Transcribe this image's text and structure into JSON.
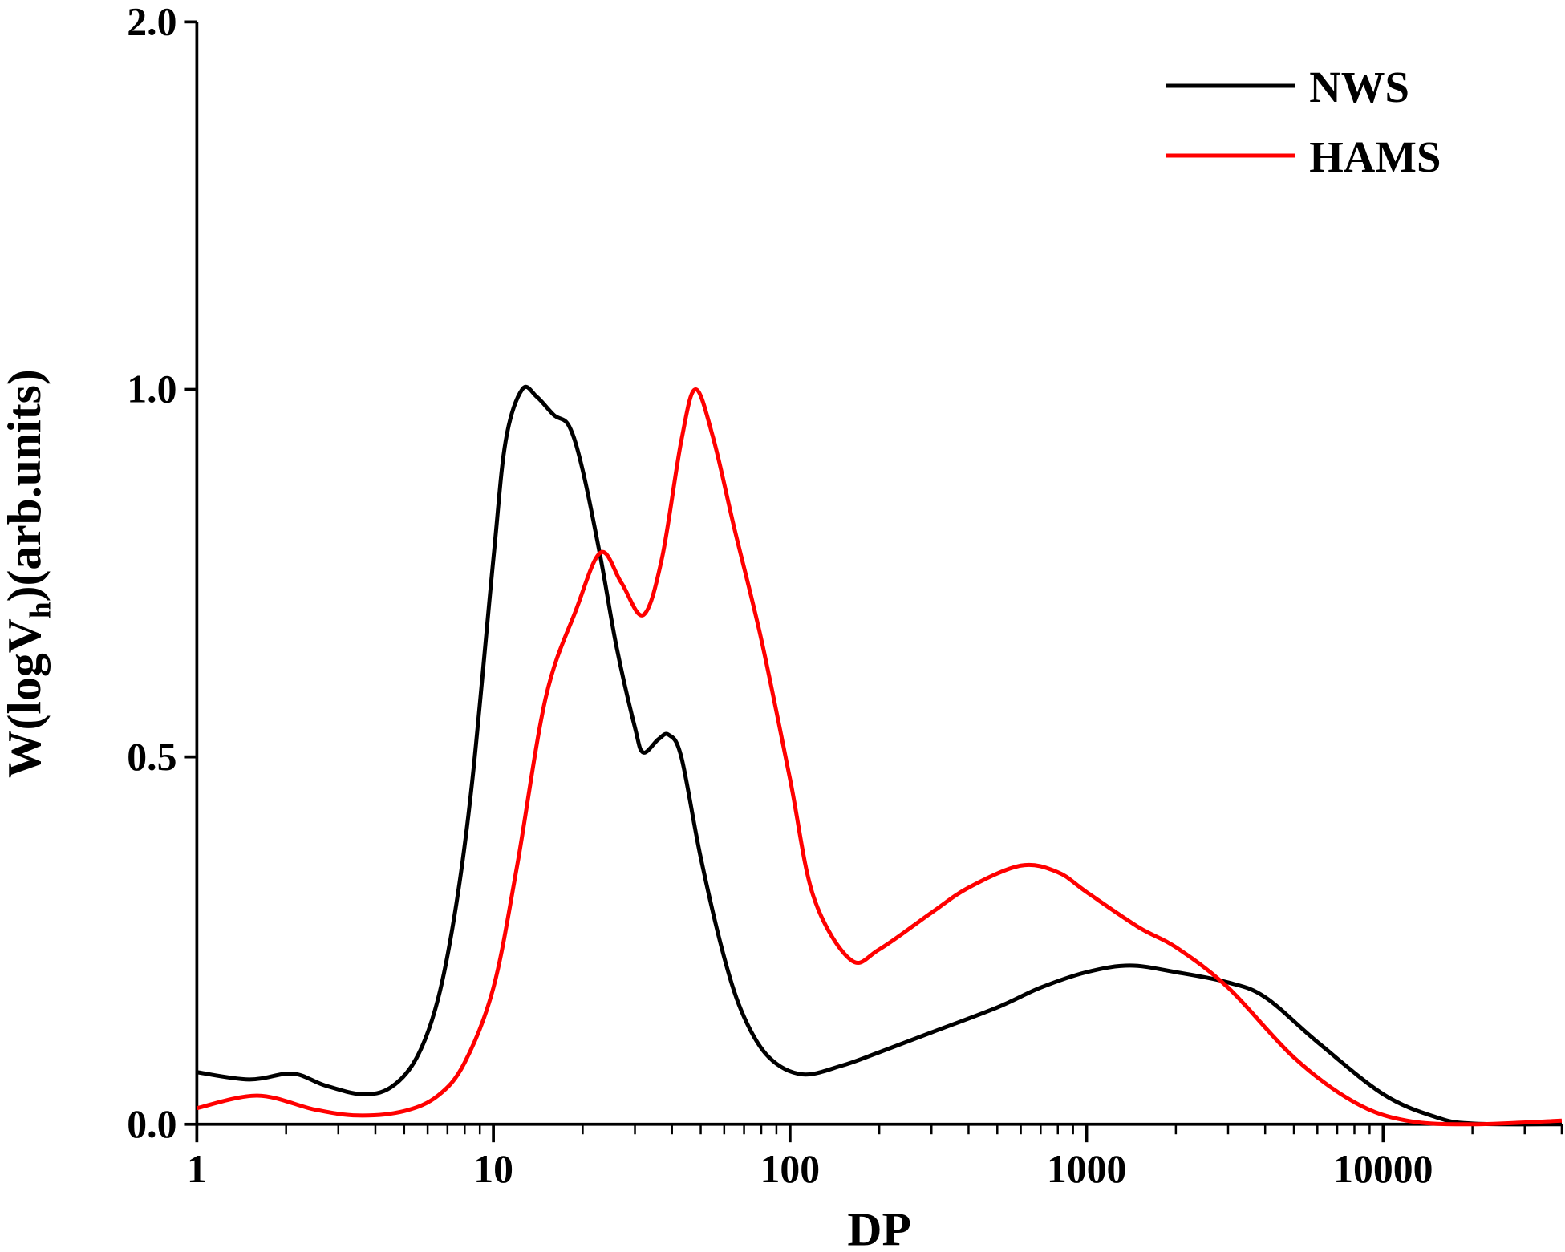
{
  "chart_data": {
    "type": "line",
    "x_label": "DP",
    "y_label_parts": [
      "W(logV",
      "h",
      ")(arb.units)"
    ],
    "log_x": true,
    "xlim": [
      1,
      40000
    ],
    "xticks": [
      1,
      10,
      100,
      1000,
      10000
    ],
    "ylim": [
      0,
      2.0
    ],
    "yticks": [
      {
        "value": 0,
        "label": "0.0"
      },
      {
        "value": 0.5,
        "label": "0.5"
      },
      {
        "value": 1.0,
        "label": "1.0"
      },
      {
        "value": 2.0,
        "label": "2.0"
      }
    ],
    "legend": "upper right",
    "series": [
      {
        "name": "NWS",
        "color": "#000000",
        "x": [
          1,
          1.5,
          2.1,
          2.7,
          3.6,
          4.5,
          5.5,
          6.5,
          7.5,
          8.5,
          10,
          11,
          12.5,
          14,
          16,
          18,
          20,
          23,
          26,
          30,
          32,
          36,
          39,
          43,
          50,
          60,
          70,
          85,
          110,
          150,
          200,
          300,
          500,
          700,
          1000,
          1400,
          2000,
          3000,
          4000,
          6000,
          10000,
          15000,
          20000,
          40000
        ],
        "values": [
          0.071,
          0.061,
          0.069,
          0.053,
          0.041,
          0.05,
          0.09,
          0.17,
          0.3,
          0.47,
          0.77,
          0.93,
          1.0,
          0.99,
          0.965,
          0.95,
          0.89,
          0.77,
          0.65,
          0.54,
          0.506,
          0.524,
          0.53,
          0.5,
          0.363,
          0.227,
          0.146,
          0.091,
          0.068,
          0.08,
          0.098,
          0.125,
          0.159,
          0.186,
          0.207,
          0.216,
          0.207,
          0.193,
          0.173,
          0.112,
          0.041,
          0.01,
          0.001,
          0
        ]
      },
      {
        "name": "HAMS",
        "color": "#ff0000",
        "x": [
          1,
          1.6,
          2.5,
          3.5,
          5,
          6.5,
          8,
          10,
          12,
          15,
          19,
          23,
          27,
          32,
          37,
          43,
          48,
          55,
          65,
          80,
          100,
          120,
          160,
          200,
          300,
          400,
          600,
          800,
          1000,
          1500,
          2000,
          3000,
          5000,
          8000,
          12000,
          20000,
          40000
        ],
        "values": [
          0.022,
          0.039,
          0.02,
          0.012,
          0.018,
          0.039,
          0.084,
          0.186,
          0.35,
          0.58,
          0.7,
          0.778,
          0.737,
          0.693,
          0.77,
          0.93,
          1.0,
          0.935,
          0.81,
          0.66,
          0.47,
          0.31,
          0.224,
          0.238,
          0.288,
          0.322,
          0.352,
          0.343,
          0.316,
          0.268,
          0.241,
          0.186,
          0.091,
          0.03,
          0.005,
          0,
          0.005
        ]
      }
    ]
  }
}
